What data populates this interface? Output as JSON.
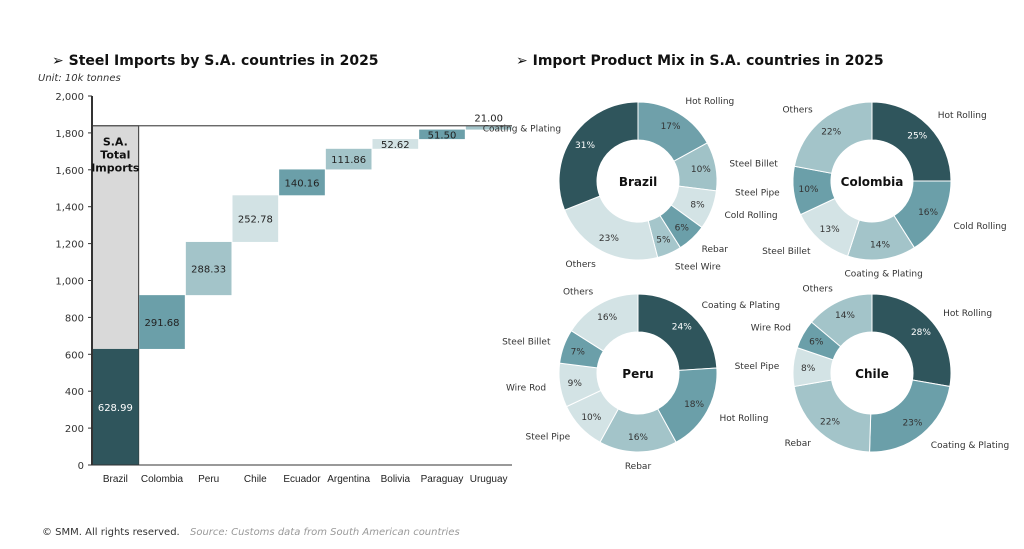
{
  "left_title": "➢ Steel Imports by S.A. countries in 2025",
  "right_title": "➢ Import Product Mix in S.A. countries in 2025",
  "unit": "Unit: 10k tonnes",
  "footer": {
    "copyright": "© SMM. All rights reserved.",
    "source": "Source: Customs data from South American countries"
  },
  "chart_data": [
    {
      "type": "bar",
      "subtype": "waterfall",
      "ylim": [
        0,
        2000
      ],
      "yticks": [
        0,
        200,
        400,
        600,
        800,
        1000,
        1200,
        1400,
        1600,
        1800,
        2000
      ],
      "ytick_labels": [
        "0",
        "200",
        "400",
        "600",
        "800",
        "1,000",
        "1,200",
        "1,400",
        "1,600",
        "1,800",
        "2,000"
      ],
      "categories": [
        "Brazil",
        "Colombia",
        "Peru",
        "Chile",
        "Ecuador",
        "Argentina",
        "Bolivia",
        "Paraguay",
        "Uruguay"
      ],
      "values": [
        628.99,
        291.68,
        288.33,
        252.78,
        140.16,
        111.86,
        52.62,
        51.5,
        21.0
      ],
      "labels": [
        "628.99",
        "291.68",
        "288.33",
        "252.78",
        "140.16",
        "111.86",
        "52.62",
        "51.50",
        "21.00"
      ],
      "total_label": "S.A. Total Imports",
      "total_value": 1838.92,
      "colors": [
        "#2f555c",
        "#6b9fa9",
        "#a3c4c9",
        "#d2e2e4",
        "#6b9fa9",
        "#a3c4c9",
        "#d2e2e4",
        "#6b9fa9",
        "#a3c4c9"
      ],
      "total_color": "#d9d9d9"
    },
    {
      "type": "pie",
      "title": "Brazil",
      "slices": [
        {
          "label": "Hot Rolling",
          "value": 17,
          "text": "17%",
          "color": "#6fa0aa"
        },
        {
          "label": "Steel Billet",
          "value": 10,
          "text": "10%",
          "color": "#a0c2c7"
        },
        {
          "label": "Cold Rolling",
          "value": 8,
          "text": "8%",
          "color": "#d3e3e5"
        },
        {
          "label": "Rebar",
          "value": 6,
          "text": "6%",
          "color": "#6b9fa9"
        },
        {
          "label": "Steel Wire",
          "value": 5,
          "text": "5%",
          "color": "#a5c6cb"
        },
        {
          "label": "Others",
          "value": 23,
          "text": "23%",
          "color": "#d3e3e5"
        },
        {
          "label": "Coating & Plating",
          "value": 31,
          "text": "31%",
          "color": "#2f555c"
        }
      ]
    },
    {
      "type": "pie",
      "title": "Colombia",
      "slices": [
        {
          "label": "Hot Rolling",
          "value": 25,
          "text": "25%",
          "color": "#2f555c"
        },
        {
          "label": "Cold Rolling",
          "value": 16,
          "text": "16%",
          "color": "#6b9fa9"
        },
        {
          "label": "Coating & Plating",
          "value": 14,
          "text": "14%",
          "color": "#a3c4c9"
        },
        {
          "label": "Steel Billet",
          "value": 13,
          "text": "13%",
          "color": "#d3e3e5"
        },
        {
          "label": "Steel Pipe",
          "value": 10,
          "text": "10%",
          "color": "#6b9fa9"
        },
        {
          "label": "Others",
          "value": 22,
          "text": "22%",
          "color": "#a3c4c9"
        }
      ]
    },
    {
      "type": "pie",
      "title": "Peru",
      "slices": [
        {
          "label": "Coating & Plating",
          "value": 24,
          "text": "24%",
          "color": "#2f555c"
        },
        {
          "label": "Hot Rolling",
          "value": 18,
          "text": "18%",
          "color": "#6b9fa9"
        },
        {
          "label": "Rebar",
          "value": 16,
          "text": "16%",
          "color": "#a3c4c9"
        },
        {
          "label": "Steel Pipe",
          "value": 10,
          "text": "10%",
          "color": "#d3e3e5"
        },
        {
          "label": "Wire Rod",
          "value": 9,
          "text": "9%",
          "color": "#d3e3e5"
        },
        {
          "label": "Steel Billet",
          "value": 7,
          "text": "7%",
          "color": "#6b9fa9"
        },
        {
          "label": "Others",
          "value": 16,
          "text": "16%",
          "color": "#d3e3e5"
        }
      ]
    },
    {
      "type": "pie",
      "title": "Chile",
      "slices": [
        {
          "label": "Hot Rolling",
          "value": 28,
          "text": "28%",
          "color": "#2f555c"
        },
        {
          "label": "Coating & Plating",
          "value": 23,
          "text": "23%",
          "color": "#6b9fa9"
        },
        {
          "label": "Rebar",
          "value": 22,
          "text": "22%",
          "color": "#a3c4c9"
        },
        {
          "label": "Steel Pipe",
          "value": 8,
          "text": "8%",
          "color": "#d3e3e5"
        },
        {
          "label": "Wire Rod",
          "value": 6,
          "text": "6%",
          "color": "#6b9fa9"
        },
        {
          "label": "Others",
          "value": 14,
          "text": "14%",
          "color": "#a3c4c9"
        }
      ]
    }
  ]
}
